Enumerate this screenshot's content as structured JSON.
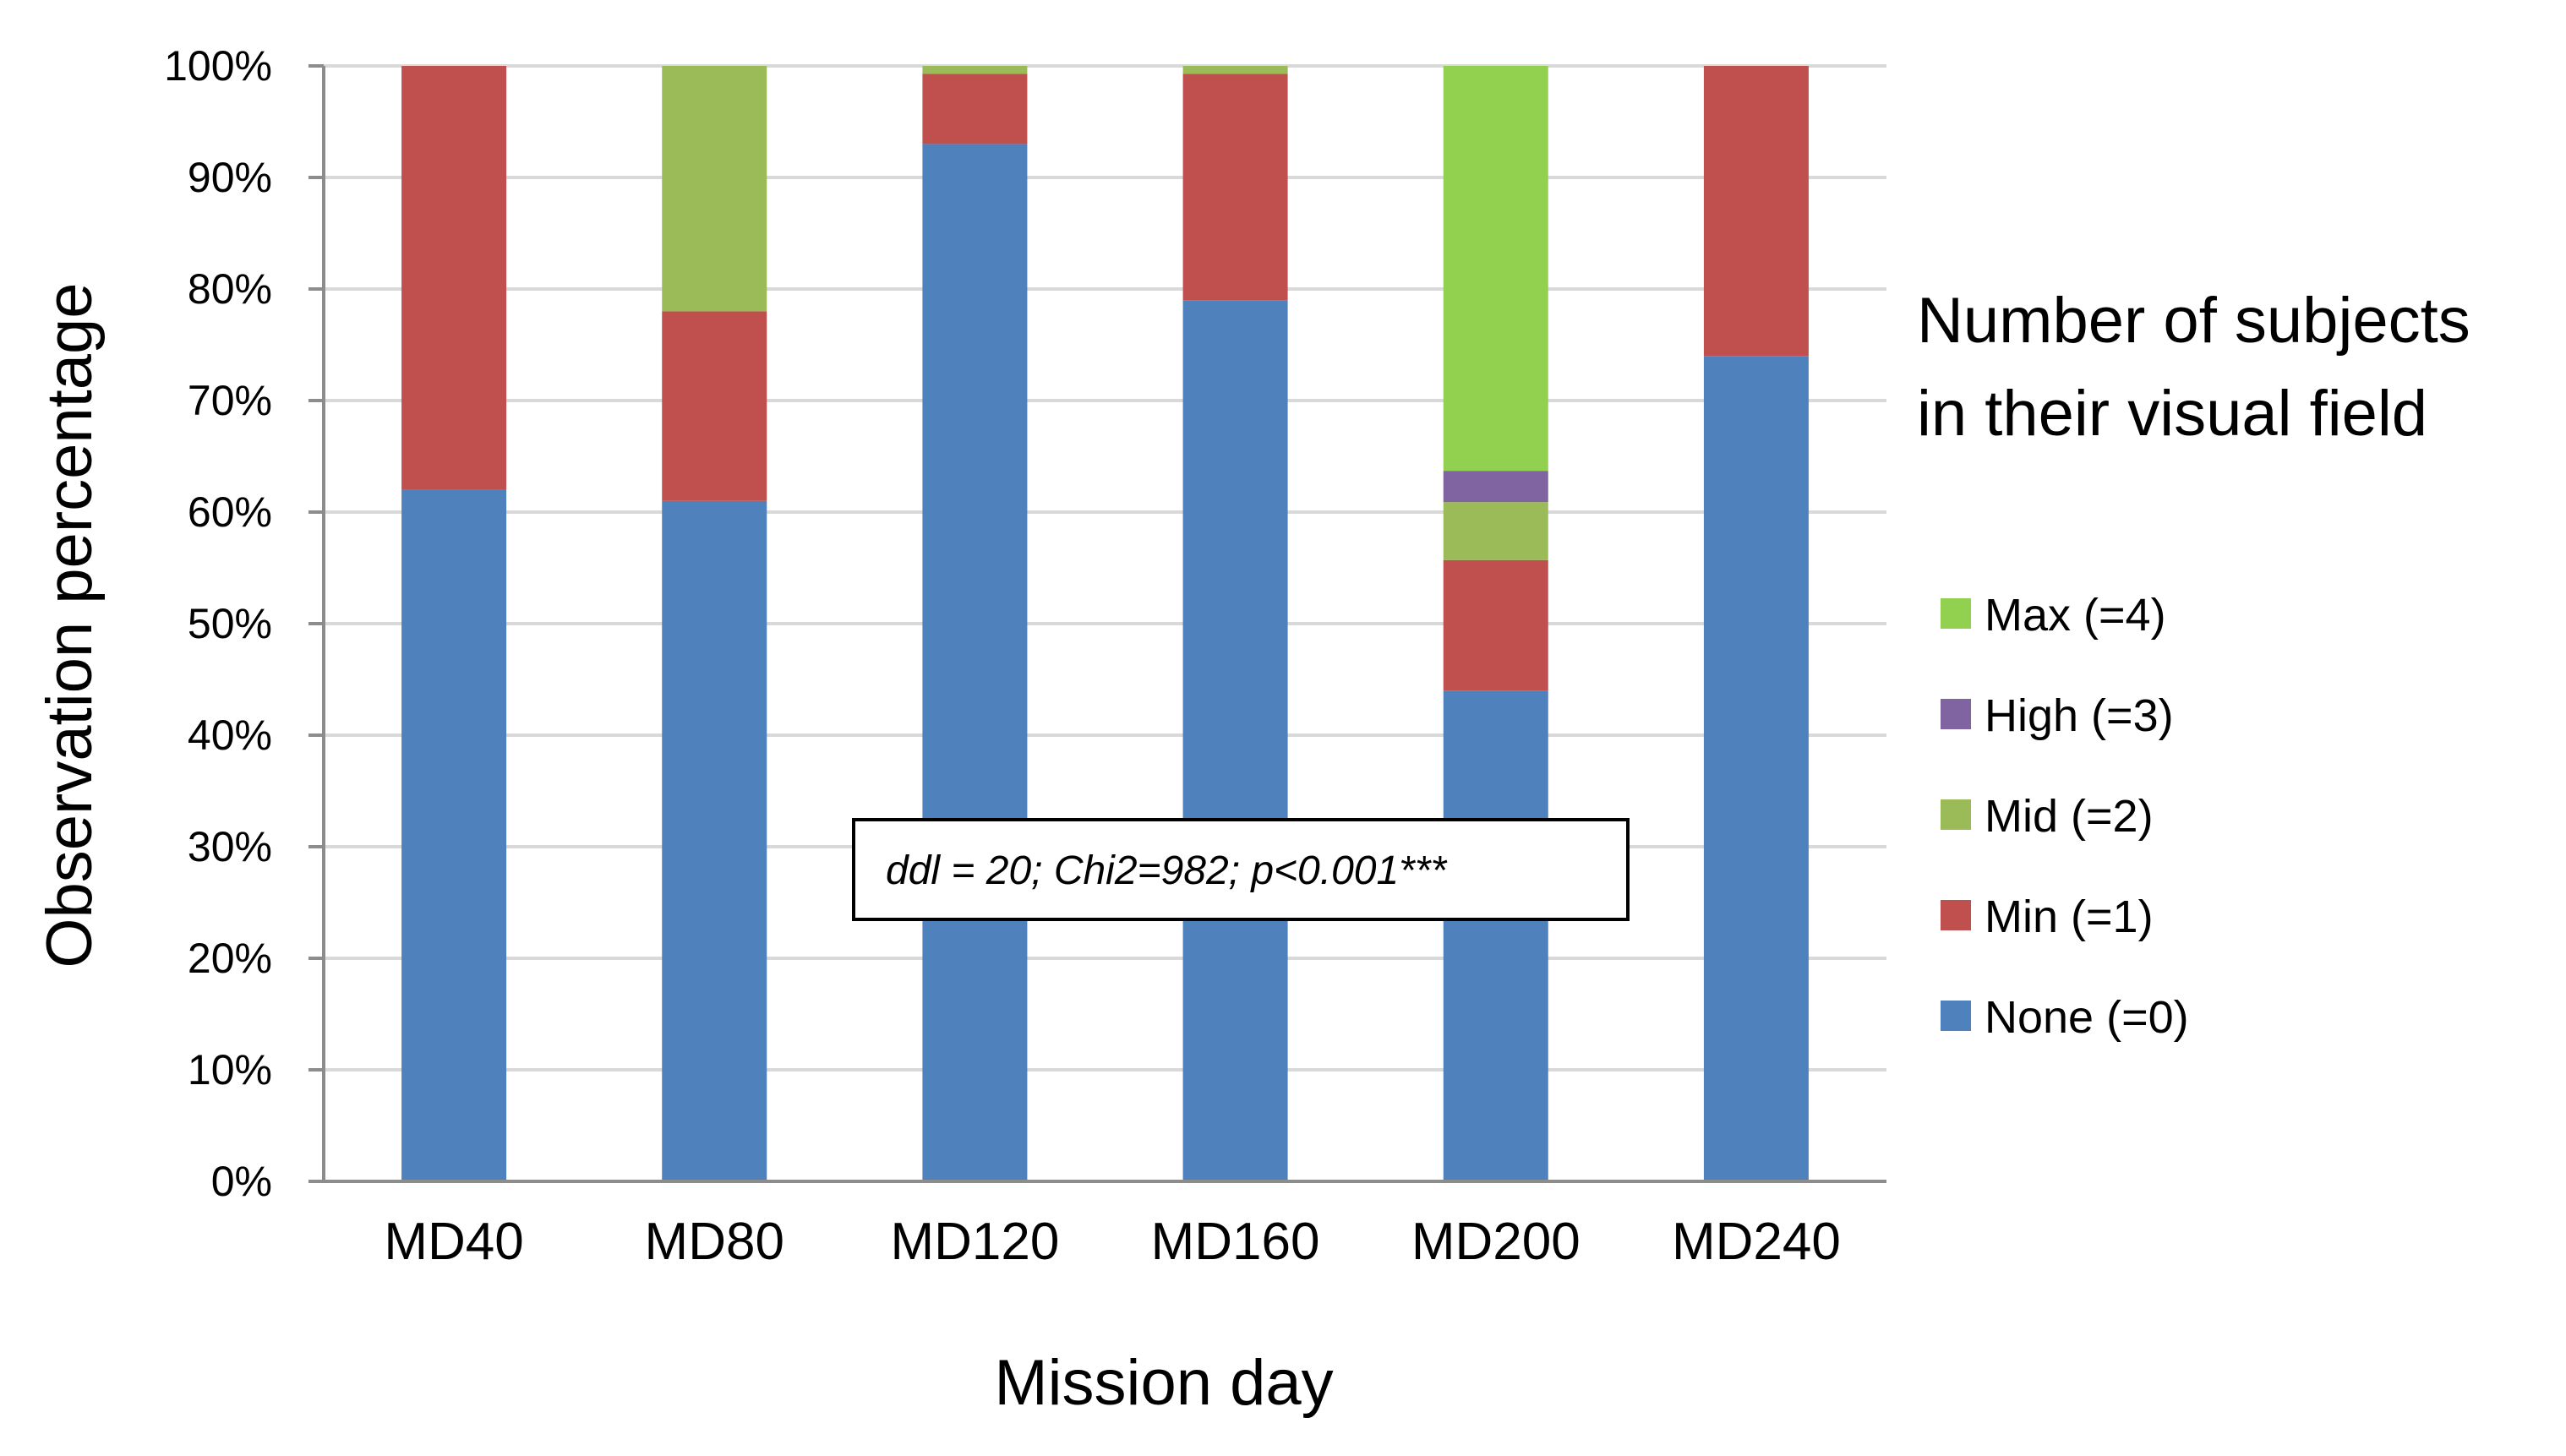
{
  "chart_data": {
    "type": "bar",
    "stacked": true,
    "categories": [
      "MD40",
      "MD80",
      "MD120",
      "MD160",
      "MD200",
      "MD240"
    ],
    "series": [
      {
        "name": "None (=0)",
        "color": "#4F81BD",
        "values": [
          62,
          61,
          93,
          79,
          44,
          74
        ]
      },
      {
        "name": "Min (=1)",
        "color": "#C0504D",
        "values": [
          38,
          17,
          6.3,
          20.3,
          11.7,
          26
        ]
      },
      {
        "name": "Mid (=2)",
        "color": "#9BBB59",
        "values": [
          0,
          22,
          0.7,
          0.7,
          5.2,
          0
        ]
      },
      {
        "name": "High (=3)",
        "color": "#8064A2",
        "values": [
          0,
          0,
          0,
          0,
          2.8,
          0
        ]
      },
      {
        "name": "Max (=4)",
        "color": "#92D050",
        "values": [
          0,
          0,
          0,
          0,
          36.3,
          0
        ]
      }
    ],
    "legend_order": [
      "Max (=4)",
      "High (=3)",
      "Mid (=2)",
      "Min (=1)",
      "None (=0)"
    ],
    "y_ticks": [
      "0%",
      "10%",
      "20%",
      "30%",
      "40%",
      "50%",
      "60%",
      "70%",
      "80%",
      "90%",
      "100%"
    ],
    "ylim": [
      0,
      100
    ],
    "xlabel": "Mission day",
    "ylabel": "Observation percentage",
    "legend_title": [
      "Number of subjects",
      "in their visual field"
    ],
    "legend_position": "right",
    "grid": true,
    "annotation": "ddl = 20; Chi2=982; p<0.001***"
  }
}
